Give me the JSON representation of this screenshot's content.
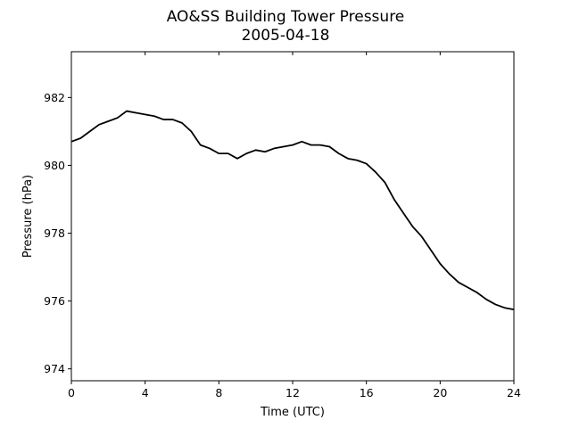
{
  "chart_data": {
    "type": "line",
    "title": "AO&SS Building Tower Pressure",
    "subtitle": "2005-04-18",
    "xlabel": "Time (UTC)",
    "ylabel": "Pressure (hPa)",
    "xlim": [
      0,
      24
    ],
    "ylim": [
      973.65,
      983.35
    ],
    "xticks": [
      0,
      4,
      8,
      12,
      16,
      20,
      24
    ],
    "yticks": [
      974,
      976,
      978,
      980,
      982
    ],
    "grid": false,
    "line_color": "#000000",
    "series": [
      {
        "x": [
          0,
          0.5,
          1,
          1.5,
          2,
          2.5,
          3,
          3.5,
          4,
          4.5,
          5,
          5.5,
          6,
          6.5,
          7,
          7.5,
          8,
          8.5,
          9,
          9.5,
          10,
          10.5,
          11,
          11.5,
          12,
          12.5,
          13,
          13.5,
          14,
          14.5,
          15,
          15.5,
          16,
          16.5,
          17,
          17.5,
          18,
          18.5,
          19,
          19.5,
          20,
          20.5,
          21,
          21.5,
          22,
          22.5,
          23,
          23.5,
          24
        ],
        "y": [
          980.7,
          980.8,
          981.0,
          981.2,
          981.3,
          981.4,
          981.6,
          981.55,
          981.5,
          981.45,
          981.35,
          981.35,
          981.25,
          981.0,
          980.6,
          980.5,
          980.35,
          980.35,
          980.2,
          980.35,
          980.45,
          980.4,
          980.5,
          980.55,
          980.6,
          980.7,
          980.6,
          980.6,
          980.55,
          980.35,
          980.2,
          980.15,
          980.05,
          979.8,
          979.5,
          979.0,
          978.6,
          978.2,
          977.9,
          977.5,
          977.1,
          976.8,
          976.55,
          976.4,
          976.25,
          976.05,
          975.9,
          975.8,
          975.75
        ]
      }
    ]
  }
}
